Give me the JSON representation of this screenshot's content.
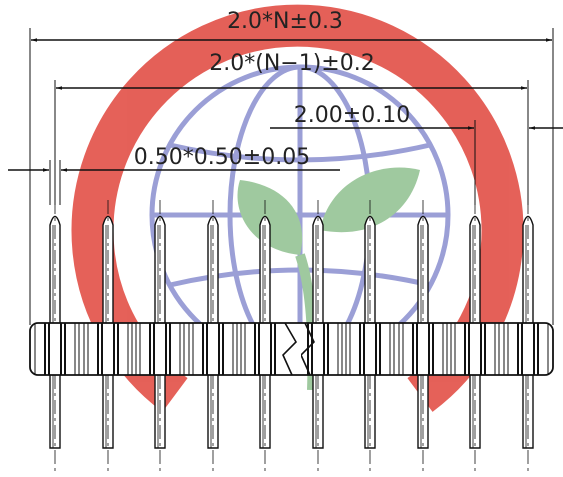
{
  "dimensions": [
    {
      "label": "2.0*N±0.3"
    },
    {
      "label": "2.0*(N−1)±0.2"
    },
    {
      "label": "2.00±0.10"
    },
    {
      "label": "0.50*0.50±0.05"
    }
  ]
}
